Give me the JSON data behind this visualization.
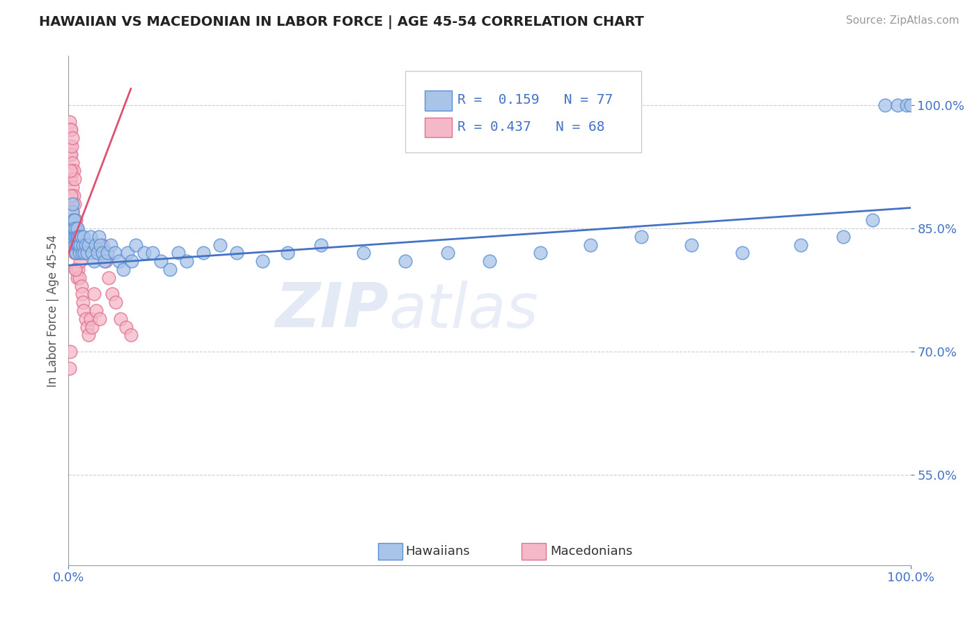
{
  "title": "HAWAIIAN VS MACEDONIAN IN LABOR FORCE | AGE 45-54 CORRELATION CHART",
  "source_text": "Source: ZipAtlas.com",
  "ylabel": "In Labor Force | Age 45-54",
  "xlim": [
    0.0,
    1.0
  ],
  "ylim": [
    0.44,
    1.06
  ],
  "ytick_positions": [
    0.55,
    0.7,
    0.85,
    1.0
  ],
  "ytick_labels": [
    "55.0%",
    "70.0%",
    "85.0%",
    "100.0%"
  ],
  "hawaiians_color": "#a8c4e8",
  "hawaiians_edge_color": "#5a8fd4",
  "macedonians_color": "#f5b8c8",
  "macedonians_edge_color": "#e07090",
  "trend_hawaiians_color": "#4472c4",
  "trend_macedonians_color": "#e05070",
  "R_hawaiians": 0.159,
  "N_hawaiians": 77,
  "R_macedonians": 0.437,
  "N_macedonians": 68,
  "legend_hawaiians_label": "Hawaiians",
  "legend_macedonians_label": "Macedonians",
  "watermark_line1": "ZIP",
  "watermark_line2": "atlas",
  "hawaiians_x": [
    0.002,
    0.003,
    0.004,
    0.004,
    0.005,
    0.005,
    0.005,
    0.006,
    0.006,
    0.007,
    0.007,
    0.008,
    0.008,
    0.009,
    0.009,
    0.01,
    0.01,
    0.01,
    0.011,
    0.011,
    0.012,
    0.013,
    0.013,
    0.014,
    0.015,
    0.016,
    0.017,
    0.018,
    0.019,
    0.02,
    0.022,
    0.024,
    0.026,
    0.028,
    0.03,
    0.032,
    0.034,
    0.036,
    0.038,
    0.04,
    0.043,
    0.046,
    0.05,
    0.055,
    0.06,
    0.065,
    0.07,
    0.075,
    0.08,
    0.09,
    0.1,
    0.11,
    0.12,
    0.13,
    0.14,
    0.16,
    0.18,
    0.2,
    0.23,
    0.26,
    0.3,
    0.35,
    0.4,
    0.45,
    0.5,
    0.56,
    0.62,
    0.68,
    0.74,
    0.8,
    0.87,
    0.92,
    0.955,
    0.97,
    0.985,
    0.995,
    1.0
  ],
  "hawaiians_y": [
    0.84,
    0.86,
    0.83,
    0.85,
    0.87,
    0.88,
    0.84,
    0.86,
    0.85,
    0.84,
    0.86,
    0.83,
    0.85,
    0.84,
    0.82,
    0.83,
    0.84,
    0.85,
    0.83,
    0.84,
    0.83,
    0.82,
    0.84,
    0.83,
    0.84,
    0.82,
    0.83,
    0.84,
    0.82,
    0.83,
    0.82,
    0.83,
    0.84,
    0.82,
    0.81,
    0.83,
    0.82,
    0.84,
    0.83,
    0.82,
    0.81,
    0.82,
    0.83,
    0.82,
    0.81,
    0.8,
    0.82,
    0.81,
    0.83,
    0.82,
    0.82,
    0.81,
    0.8,
    0.82,
    0.81,
    0.82,
    0.83,
    0.82,
    0.81,
    0.82,
    0.83,
    0.82,
    0.81,
    0.82,
    0.81,
    0.82,
    0.83,
    0.84,
    0.83,
    0.82,
    0.83,
    0.84,
    0.86,
    1.0,
    1.0,
    1.0,
    1.0
  ],
  "macedonians_x": [
    0.001,
    0.001,
    0.002,
    0.002,
    0.002,
    0.003,
    0.003,
    0.003,
    0.003,
    0.004,
    0.004,
    0.004,
    0.004,
    0.005,
    0.005,
    0.005,
    0.005,
    0.005,
    0.006,
    0.006,
    0.006,
    0.006,
    0.007,
    0.007,
    0.007,
    0.007,
    0.008,
    0.008,
    0.009,
    0.009,
    0.009,
    0.01,
    0.01,
    0.01,
    0.011,
    0.012,
    0.013,
    0.014,
    0.015,
    0.016,
    0.017,
    0.018,
    0.02,
    0.022,
    0.024,
    0.026,
    0.028,
    0.03,
    0.033,
    0.037,
    0.04,
    0.044,
    0.048,
    0.052,
    0.056,
    0.062,
    0.068,
    0.074,
    0.008,
    0.009,
    0.004,
    0.005,
    0.006,
    0.007,
    0.003,
    0.002,
    0.001,
    0.002
  ],
  "macedonians_y": [
    0.95,
    0.98,
    0.91,
    0.94,
    0.97,
    0.88,
    0.91,
    0.94,
    0.97,
    0.86,
    0.89,
    0.92,
    0.95,
    0.84,
    0.87,
    0.9,
    0.93,
    0.96,
    0.83,
    0.86,
    0.89,
    0.92,
    0.82,
    0.85,
    0.88,
    0.91,
    0.82,
    0.85,
    0.8,
    0.83,
    0.86,
    0.79,
    0.82,
    0.85,
    0.8,
    0.82,
    0.79,
    0.81,
    0.78,
    0.77,
    0.76,
    0.75,
    0.74,
    0.73,
    0.72,
    0.74,
    0.73,
    0.77,
    0.75,
    0.74,
    0.83,
    0.81,
    0.79,
    0.77,
    0.76,
    0.74,
    0.73,
    0.72,
    0.8,
    0.82,
    0.85,
    0.84,
    0.86,
    0.83,
    0.89,
    0.92,
    0.68,
    0.7
  ],
  "trend_h_x0": 0.0,
  "trend_h_x1": 1.0,
  "trend_h_y0": 0.805,
  "trend_h_y1": 0.875,
  "trend_m_x0": 0.0,
  "trend_m_x1": 0.074,
  "trend_m_y0": 0.82,
  "trend_m_y1": 1.02
}
